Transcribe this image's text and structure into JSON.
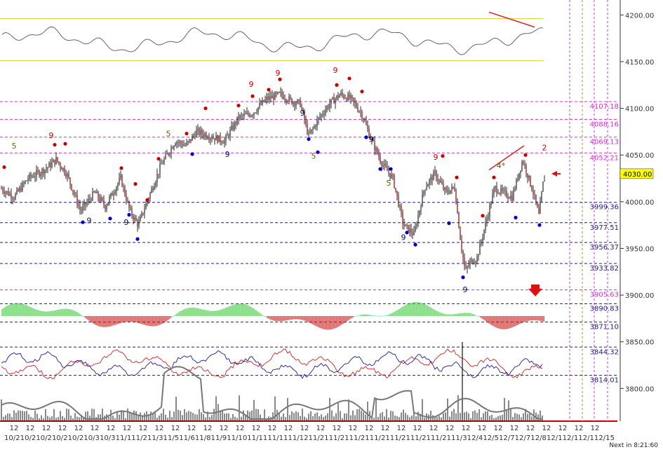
{
  "chart_data": {
    "type": "line",
    "title": "",
    "instrument_price_scale": {
      "min": 3780,
      "max": 4210,
      "ticks": [
        4200,
        4150,
        4100,
        4050,
        4000,
        3950,
        3900,
        3850,
        3800
      ],
      "tick_labels": [
        "4200.00",
        "4150.00",
        "4100.00",
        "4050.00",
        "4000.00",
        "3950.00",
        "3900.00",
        "3850.00",
        "3800.00"
      ]
    },
    "current_price": {
      "value": 4030.0,
      "label": "4030.00",
      "color": "#ffff00"
    },
    "levels": [
      {
        "value": 4107.18,
        "label": "4107.18",
        "color": "#cc33cc",
        "style": "dash"
      },
      {
        "value": 4088.16,
        "label": "4088.16",
        "color": "#cc33cc",
        "style": "dash"
      },
      {
        "value": 4069.13,
        "label": "4069.13",
        "color": "#cc33cc",
        "style": "dash"
      },
      {
        "value": 4052.21,
        "label": "4052.21",
        "color": "#cc33cc",
        "style": "dash"
      },
      {
        "value": 3999.36,
        "label": "3999.36",
        "color": "#1a1a8c",
        "style": "dash"
      },
      {
        "value": 3977.51,
        "label": "3977.51",
        "color": "#1a1a8c",
        "style": "dash"
      },
      {
        "value": 3956.37,
        "label": "3956.37",
        "color": "#1a1a8c",
        "style": "dash"
      },
      {
        "value": 3933.82,
        "label": "3933.82",
        "color": "#1a1a8c",
        "style": "dash"
      },
      {
        "value": 3905.63,
        "label": "3905.63",
        "color": "#cc33cc",
        "style": "dash"
      },
      {
        "value": 3890.83,
        "label": "3890.83",
        "color": "#1a1a8c",
        "style": "dash"
      },
      {
        "value": 3871.1,
        "label": "3871.10",
        "color": "#1a1a8c",
        "style": "dash"
      },
      {
        "value": 3844.32,
        "label": "3844.32",
        "color": "#1a1a8c",
        "style": "dash"
      },
      {
        "value": 3814.01,
        "label": "3814.01",
        "color": "#1a1a8c",
        "style": "dash"
      }
    ],
    "price_anchor_points": [
      [
        0,
        4015
      ],
      [
        20,
        4005
      ],
      [
        40,
        4025
      ],
      [
        65,
        4035
      ],
      [
        80,
        4045
      ],
      [
        95,
        4030
      ],
      [
        115,
        3990
      ],
      [
        135,
        4010
      ],
      [
        150,
        3995
      ],
      [
        172,
        4025
      ],
      [
        185,
        3990
      ],
      [
        197,
        3975
      ],
      [
        212,
        4005
      ],
      [
        230,
        4040
      ],
      [
        250,
        4065
      ],
      [
        265,
        4060
      ],
      [
        280,
        4075
      ],
      [
        300,
        4070
      ],
      [
        320,
        4065
      ],
      [
        340,
        4090
      ],
      [
        360,
        4095
      ],
      [
        380,
        4110
      ],
      [
        400,
        4115
      ],
      [
        415,
        4108
      ],
      [
        428,
        4105
      ],
      [
        440,
        4070
      ],
      [
        455,
        4090
      ],
      [
        470,
        4105
      ],
      [
        485,
        4115
      ],
      [
        500,
        4110
      ],
      [
        515,
        4095
      ],
      [
        530,
        4065
      ],
      [
        545,
        4040
      ],
      [
        560,
        4025
      ],
      [
        575,
        3975
      ],
      [
        590,
        3965
      ],
      [
        605,
        4015
      ],
      [
        620,
        4030
      ],
      [
        635,
        4010
      ],
      [
        648,
        4015
      ],
      [
        657,
        3955
      ],
      [
        663,
        3925
      ],
      [
        670,
        3935
      ],
      [
        680,
        3940
      ],
      [
        695,
        3985
      ],
      [
        705,
        4015
      ],
      [
        715,
        4010
      ],
      [
        730,
        4005
      ],
      [
        745,
        4045
      ],
      [
        760,
        4010
      ],
      [
        768,
        3985
      ],
      [
        775,
        4025
      ]
    ],
    "setup_marks": [
      {
        "label": "5",
        "color": "#666600",
        "x": 20,
        "price": 4057
      },
      {
        "label": "9",
        "color": "#cc0000",
        "x": 73,
        "price": 4068
      },
      {
        "label": "9",
        "color": "#000066",
        "x": 127,
        "price": 3977
      },
      {
        "label": "9",
        "color": "#000066",
        "x": 180,
        "price": 3975
      },
      {
        "label": "5",
        "color": "#666600",
        "x": 240,
        "price": 4070
      },
      {
        "label": "9",
        "color": "#000066",
        "x": 324,
        "price": 4048
      },
      {
        "label": "9",
        "color": "#cc0000",
        "x": 358,
        "price": 4123
      },
      {
        "label": "9",
        "color": "#cc0000",
        "x": 396,
        "price": 4135
      },
      {
        "label": "9",
        "color": "#000066",
        "x": 431,
        "price": 4092
      },
      {
        "label": "5",
        "color": "#666600",
        "x": 447,
        "price": 4046
      },
      {
        "label": "9",
        "color": "#cc0000",
        "x": 478,
        "price": 4138
      },
      {
        "label": "9",
        "color": "#000066",
        "x": 529,
        "price": 4064
      },
      {
        "label": "5",
        "color": "#666600",
        "x": 554,
        "price": 4017
      },
      {
        "label": "9",
        "color": "#000066",
        "x": 575,
        "price": 3959
      },
      {
        "label": "9",
        "color": "#cc0000",
        "x": 621,
        "price": 4045
      },
      {
        "label": "9",
        "color": "#000066",
        "x": 663,
        "price": 3903
      },
      {
        "label": "4*",
        "color": "#666600",
        "x": 714,
        "price": 4036
      },
      {
        "label": "2",
        "color": "#cc0000",
        "x": 776,
        "price": 4055
      }
    ],
    "dots": [
      {
        "color": "#cc0000",
        "x": 6,
        "price": 4037
      },
      {
        "color": "#cc0000",
        "x": 78,
        "price": 4061
      },
      {
        "color": "#cc0000",
        "x": 93,
        "price": 4062
      },
      {
        "color": "#cc0000",
        "x": 173,
        "price": 4036
      },
      {
        "color": "#cc0000",
        "x": 193,
        "price": 4019
      },
      {
        "color": "#cc0000",
        "x": 210,
        "price": 4002
      },
      {
        "color": "#cc0000",
        "x": 226,
        "price": 4046
      },
      {
        "color": "#cc0000",
        "x": 266,
        "price": 4073
      },
      {
        "color": "#cc0000",
        "x": 293,
        "price": 4100
      },
      {
        "color": "#cc0000",
        "x": 340,
        "price": 4103
      },
      {
        "color": "#cc0000",
        "x": 360,
        "price": 4113
      },
      {
        "color": "#cc0000",
        "x": 383,
        "price": 4120
      },
      {
        "color": "#cc0000",
        "x": 399,
        "price": 4131
      },
      {
        "color": "#cc0000",
        "x": 480,
        "price": 4125
      },
      {
        "color": "#cc0000",
        "x": 498,
        "price": 4132
      },
      {
        "color": "#cc0000",
        "x": 516,
        "price": 4118
      },
      {
        "color": "#cc0000",
        "x": 631,
        "price": 4049
      },
      {
        "color": "#cc0000",
        "x": 651,
        "price": 4026
      },
      {
        "color": "#cc0000",
        "x": 688,
        "price": 3985
      },
      {
        "color": "#cc0000",
        "x": 704,
        "price": 4026
      },
      {
        "color": "#cc0000",
        "x": 749,
        "price": 4050
      },
      {
        "color": "#0000cc",
        "x": 118,
        "price": 3978
      },
      {
        "color": "#0000cc",
        "x": 157,
        "price": 3982
      },
      {
        "color": "#0000cc",
        "x": 184,
        "price": 3986
      },
      {
        "color": "#0000cc",
        "x": 196,
        "price": 3960
      },
      {
        "color": "#0000cc",
        "x": 274,
        "price": 4051
      },
      {
        "color": "#0000cc",
        "x": 440,
        "price": 4067
      },
      {
        "color": "#0000cc",
        "x": 453,
        "price": 4053
      },
      {
        "color": "#0000cc",
        "x": 522,
        "price": 4069
      },
      {
        "color": "#0000cc",
        "x": 542,
        "price": 4035
      },
      {
        "color": "#0000cc",
        "x": 557,
        "price": 4035
      },
      {
        "color": "#0000cc",
        "x": 580,
        "price": 3967
      },
      {
        "color": "#0000cc",
        "x": 592,
        "price": 3954
      },
      {
        "color": "#0000cc",
        "x": 640,
        "price": 3977
      },
      {
        "color": "#0000cc",
        "x": 660,
        "price": 3919
      },
      {
        "color": "#0000cc",
        "x": 735,
        "price": 3983
      },
      {
        "color": "#0000cc",
        "x": 769,
        "price": 3975
      }
    ],
    "trendlines": [
      {
        "color": "#dd2222",
        "from": [
          697,
          4203
        ],
        "to": [
          762,
          4187
        ],
        "price_space": "osc"
      },
      {
        "color": "#dd2222",
        "from": [
          697,
          4034
        ],
        "to": [
          747,
          4060
        ],
        "price_space": "main"
      }
    ],
    "osc_band": {
      "upper_color": "#e6d84d",
      "lower_color": "#e6d84d",
      "upper": 4196,
      "lower": 4151
    },
    "x_tick_label": "12",
    "x_ticks_x": [
      20,
      43,
      66,
      89,
      112,
      135,
      158,
      181,
      204,
      227,
      250,
      273,
      296,
      319,
      342,
      365,
      388,
      411,
      434,
      457,
      480,
      503,
      526,
      549,
      572,
      595,
      618,
      641,
      664,
      687,
      710,
      733,
      756,
      779,
      802,
      825,
      848
    ],
    "date_labels": "10/210/210/210/210/210/310/311/111/211/311/511/611/811/911/1011/1111/1111/1211/2111/2111/2111/2111/2111/2111/2111/312/412/512/712/712/812/112/112/112/15",
    "vertical_markers": [
      {
        "x": 812,
        "color": "#cc33cc"
      },
      {
        "x": 830,
        "color": "#999933"
      },
      {
        "x": 847,
        "color": "#cc33cc"
      },
      {
        "x": 866,
        "color": "#cc33cc"
      }
    ],
    "arrow_color": "#dd1111",
    "bull_color": "#44cc44",
    "bear_color": "#cc2222",
    "neutral_color": "#44dddd",
    "line_red": "#cc2222",
    "line_blue": "#1a1a99",
    "volume_ma_color": "#777777",
    "grid": false,
    "legend": "none"
  },
  "status": {
    "next_in": "Next in 8:21:60"
  }
}
